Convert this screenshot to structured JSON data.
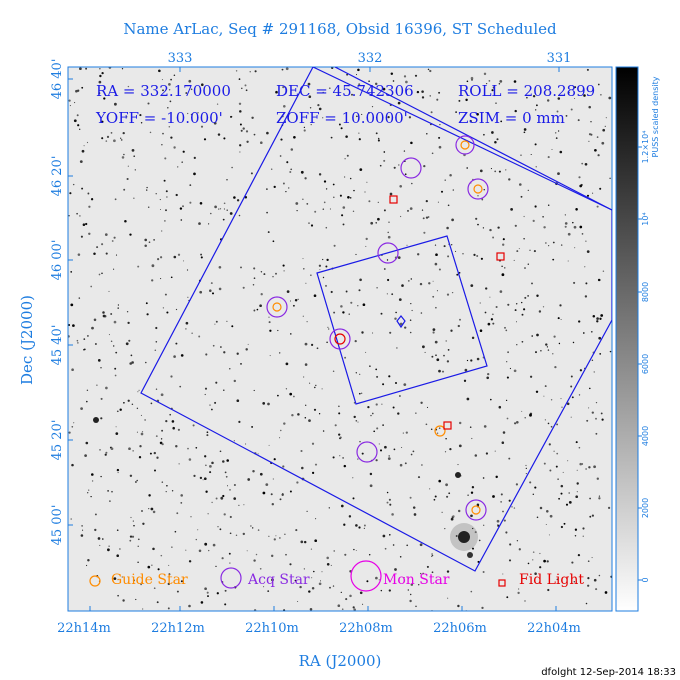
{
  "chart_data": {
    "type": "scatter",
    "title": "Name ArLac, Seq # 291168, Obsid 16396, ST Scheduled",
    "xlabel": "RA (J2000)",
    "ylabel": "Dec (J2000)",
    "top_ticks": [
      "333",
      "332",
      "331"
    ],
    "bottom_ticks": [
      "22h14m",
      "22h12m",
      "22h10m",
      "22h08m",
      "22h06m",
      "22h04m"
    ],
    "left_ticks": [
      "46 40'",
      "46 20'",
      "46 00'",
      "45 40'",
      "45 20'",
      "45 00'"
    ],
    "info": {
      "ra": "RA = 332.170000",
      "dec": "DEC = 45.742306",
      "roll": "ROLL = 208.2899",
      "yoff": "YOFF = -10.000'",
      "zoff": "ZOFF = 10.0000'",
      "zsim": "ZSIM = 0 mm"
    },
    "colorbar": {
      "label": "PUSS scaled density",
      "ticks": [
        "0",
        "2000",
        "4000",
        "6000",
        "8000",
        "10⁴",
        "1.2×10⁴"
      ]
    },
    "legend": [
      {
        "label": "Guide Star",
        "color": "#ff8c00"
      },
      {
        "label": "Acq Star",
        "color": "#8a2be2"
      },
      {
        "label": "Mon Star",
        "color": "#e600e6"
      },
      {
        "label": "Fid Light",
        "color": "#e60000"
      }
    ],
    "grid": false
  },
  "colors": {
    "axis": "#1e7de0",
    "field_lines": "#1a1ae6",
    "guide": "#ff8c00",
    "acq": "#8a2be2",
    "mon": "#e600e6",
    "fid": "#e60000"
  },
  "footer": "dfolght 12-Sep-2014 18:33"
}
